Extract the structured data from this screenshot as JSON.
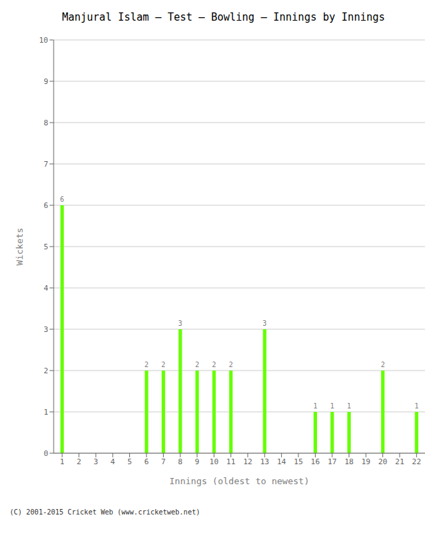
{
  "chart_data": {
    "type": "bar",
    "title": "Manjural Islam – Test – Bowling – Innings by Innings",
    "xlabel": "Innings (oldest to newest)",
    "ylabel": "Wickets",
    "categories": [
      "1",
      "2",
      "3",
      "4",
      "5",
      "6",
      "7",
      "8",
      "9",
      "10",
      "11",
      "12",
      "13",
      "14",
      "15",
      "16",
      "17",
      "18",
      "19",
      "20",
      "21",
      "22"
    ],
    "values": [
      6,
      0,
      0,
      0,
      0,
      2,
      2,
      3,
      2,
      2,
      2,
      0,
      3,
      0,
      0,
      1,
      1,
      1,
      0,
      2,
      0,
      1
    ],
    "color": "#66ff00",
    "ylim": [
      0,
      10
    ],
    "yticks": [
      0,
      1,
      2,
      3,
      4,
      5,
      6,
      7,
      8,
      9,
      10
    ],
    "grid": true,
    "data_labels": true,
    "annotations": [
      "(C) 2001-2015 Cricket Web (www.cricketweb.net)"
    ]
  }
}
